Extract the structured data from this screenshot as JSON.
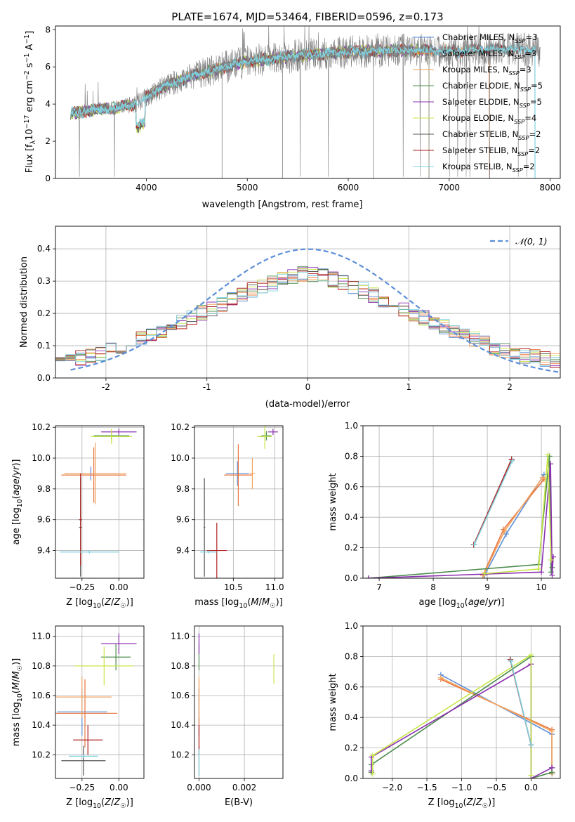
{
  "figure_title": "PLATE=1674, MJD=53464, FIBERID=0596, z=0.173",
  "colors": {
    "chabrier_miles": "#5b8fd8",
    "salpeter_miles": "#e8743b",
    "kroupa_miles": "#f4a460",
    "chabrier_elodie": "#4c8b4c",
    "salpeter_elodie": "#8b2fb0",
    "kroupa_elodie": "#c8e64a",
    "chabrier_stelib": "#555555",
    "salpeter_stelib": "#b22222",
    "kroupa_stelib": "#7fd3e0",
    "grid": "#b0b0b0",
    "gaussian": "#5b8fd8"
  },
  "chart_data": [
    {
      "id": "spectrum",
      "type": "line",
      "title": "PLATE=1674, MJD=53464, FIBERID=0596, z=0.173",
      "xlabel": "wavelength [Angstrom, rest frame]",
      "ylabel": "Flux [f_λ10^-17 erg cm^-2 s^-1 A^-1]",
      "xlim": [
        3100,
        8100
      ],
      "ylim": [
        0,
        8.2
      ],
      "xticks": [
        4000,
        5000,
        6000,
        7000,
        8000
      ],
      "yticks": [
        0,
        2,
        4,
        6,
        8
      ],
      "grid": false,
      "legend": "top-right",
      "legend_entries": [
        {
          "base": "Chabrier MILES, N",
          "sub": "SSP",
          "tail": "=3",
          "color_key": "chabrier_miles"
        },
        {
          "base": "Salpeter MILES, N",
          "sub": "SSP",
          "tail": "=3",
          "color_key": "salpeter_miles"
        },
        {
          "base": "Kroupa MILES, N",
          "sub": "SSP",
          "tail": "=3",
          "color_key": "kroupa_miles"
        },
        {
          "base": "Chabrier ELODIE, N",
          "sub": "SSP",
          "tail": "=5",
          "color_key": "chabrier_elodie"
        },
        {
          "base": "Salpeter ELODIE, N",
          "sub": "SSP",
          "tail": "=5",
          "color_key": "salpeter_elodie"
        },
        {
          "base": "Kroupa ELODIE, N",
          "sub": "SSP",
          "tail": "=4",
          "color_key": "kroupa_elodie"
        },
        {
          "base": "Chabrier STELIB, N",
          "sub": "SSP",
          "tail": "=2",
          "color_key": "chabrier_stelib"
        },
        {
          "base": "Salpeter STELIB, N",
          "sub": "SSP",
          "tail": "=2",
          "color_key": "salpeter_stelib"
        },
        {
          "base": "Kroupa STELIB, N",
          "sub": "SSP",
          "tail": "=2",
          "color_key": "kroupa_stelib"
        }
      ],
      "continuum_anchors": {
        "x": [
          3250,
          3500,
          3700,
          3900,
          4000,
          4200,
          4500,
          5000,
          5500,
          6000,
          6500,
          7000,
          7500,
          7850
        ],
        "y": [
          3.5,
          3.7,
          3.8,
          4.0,
          4.4,
          5.0,
          5.6,
          6.3,
          6.6,
          6.8,
          6.9,
          6.85,
          6.95,
          6.9
        ]
      },
      "model_cutoffs": {
        "start": 3250,
        "end_miles": 7400,
        "end_elodie": 6800,
        "end_stelib": 7850
      }
    },
    {
      "id": "residuals",
      "type": "histogram",
      "xlabel": "(data-model)/error",
      "ylabel": "Normed distribution",
      "xlim": [
        -2.5,
        2.5
      ],
      "ylim": [
        0,
        0.47
      ],
      "xticks": [
        -2,
        -1,
        0,
        1,
        2
      ],
      "yticks": [
        0,
        0.1,
        0.2,
        0.3,
        0.4
      ],
      "grid": true,
      "legend": "top-right",
      "legend_label": "𝒩(0, 1)",
      "bin_width": 0.1
    },
    {
      "id": "age_vs_Z",
      "type": "errorbar",
      "xlabel": "Z [log10(Z/Z☉)]",
      "ylabel": "age [log10(age/yr)]",
      "xlim": [
        -0.43,
        0.17
      ],
      "ylim": [
        9.22,
        10.21
      ],
      "xticks": [
        -0.25,
        0.0
      ],
      "xtick_labels": [
        "−0.25",
        "0.00"
      ],
      "yticks": [
        9.4,
        9.6,
        9.8,
        10.0,
        10.2
      ],
      "grid": true,
      "points": [
        {
          "k": "chabrier_miles",
          "x": -0.19,
          "y": 9.9,
          "xe": 0.17,
          "ye": 0.045
        },
        {
          "k": "salpeter_miles",
          "x": -0.17,
          "y": 9.89,
          "xe": 0.22,
          "ye": 0.18
        },
        {
          "k": "kroupa_miles",
          "x": -0.16,
          "y": 9.9,
          "xe": 0.21,
          "ye": 0.2
        },
        {
          "k": "chabrier_elodie",
          "x": -0.05,
          "y": 10.145,
          "xe": 0.12,
          "ye": 0.03
        },
        {
          "k": "salpeter_elodie",
          "x": 0.0,
          "y": 10.17,
          "xe": 0.12,
          "ye": 0.02
        },
        {
          "k": "kroupa_elodie",
          "x": -0.05,
          "y": 10.14,
          "xe": 0.14,
          "ye": 0.05
        },
        {
          "k": "chabrier_stelib",
          "x": -0.26,
          "y": 9.55,
          "xe": 0.01,
          "ye": 0.32
        },
        {
          "k": "salpeter_stelib",
          "x": -0.26,
          "y": 9.6,
          "xe": 0.01,
          "ye": 0.3
        },
        {
          "k": "kroupa_stelib",
          "x": -0.2,
          "y": 9.39,
          "xe": 0.2,
          "ye": 0.01
        }
      ]
    },
    {
      "id": "age_vs_mass",
      "type": "errorbar",
      "xlabel": "mass [log10(M/M☉)]",
      "ylabel": "",
      "xlim": [
        10.03,
        11.1
      ],
      "ylim": [
        9.22,
        10.21
      ],
      "xticks": [
        10.5,
        11.0
      ],
      "xtick_labels": [
        "10.5",
        "11.0"
      ],
      "yticks": [
        9.4,
        9.6,
        9.8,
        10.0,
        10.2
      ],
      "grid": true,
      "points": [
        {
          "k": "chabrier_miles",
          "x": 10.55,
          "y": 9.9,
          "xe": 0.14,
          "ye": 0.08
        },
        {
          "k": "salpeter_miles",
          "x": 10.56,
          "y": 9.89,
          "xe": 0.17,
          "ye": 0.2
        },
        {
          "k": "kroupa_miles",
          "x": 10.73,
          "y": 9.9,
          "xe": 0.03,
          "ye": 0.1
        },
        {
          "k": "chabrier_elodie",
          "x": 10.9,
          "y": 10.145,
          "xe": 0.06,
          "ye": 0.03
        },
        {
          "k": "salpeter_elodie",
          "x": 10.98,
          "y": 10.17,
          "xe": 0.06,
          "ye": 0.02
        },
        {
          "k": "kroupa_elodie",
          "x": 10.88,
          "y": 10.14,
          "xe": 0.09,
          "ye": 0.08
        },
        {
          "k": "chabrier_stelib",
          "x": 10.15,
          "y": 9.55,
          "xe": 0.01,
          "ye": 0.32
        },
        {
          "k": "salpeter_stelib",
          "x": 10.3,
          "y": 9.4,
          "xe": 0.12,
          "ye": 0.18
        },
        {
          "k": "kroupa_stelib",
          "x": 10.2,
          "y": 9.39,
          "xe": 0.1,
          "ye": 0.01
        }
      ]
    },
    {
      "id": "mass_vs_Z",
      "type": "errorbar",
      "xlabel": "Z [log10(Z/Z☉)]",
      "ylabel": "mass [log10(M/M☉)]",
      "xlim": [
        -0.43,
        0.17
      ],
      "ylim": [
        10.04,
        11.07
      ],
      "xticks": [
        -0.25,
        0.0
      ],
      "xtick_labels": [
        "−0.25",
        "0.00"
      ],
      "yticks": [
        10.2,
        10.4,
        10.6,
        10.8,
        11.0
      ],
      "grid": true,
      "points": [
        {
          "k": "chabrier_miles",
          "x": -0.25,
          "y": 10.49,
          "xe": 0.17,
          "ye": 0.16
        },
        {
          "k": "salpeter_miles",
          "x": -0.23,
          "y": 10.48,
          "xe": 0.22,
          "ye": 0.23
        },
        {
          "k": "kroupa_miles",
          "x": -0.25,
          "y": 10.59,
          "xe": 0.2,
          "ye": 0.14
        },
        {
          "k": "chabrier_elodie",
          "x": -0.02,
          "y": 10.86,
          "xe": 0.1,
          "ye": 0.09
        },
        {
          "k": "salpeter_elodie",
          "x": 0.0,
          "y": 10.95,
          "xe": 0.12,
          "ye": 0.07
        },
        {
          "k": "kroupa_elodie",
          "x": -0.1,
          "y": 10.8,
          "xe": 0.2,
          "ye": 0.13
        },
        {
          "k": "chabrier_stelib",
          "x": -0.24,
          "y": 10.16,
          "xe": 0.15,
          "ye": 0.1
        },
        {
          "k": "salpeter_stelib",
          "x": -0.21,
          "y": 10.3,
          "xe": 0.1,
          "ye": 0.1
        },
        {
          "k": "kroupa_stelib",
          "x": -0.24,
          "y": 10.19,
          "xe": 0.1,
          "ye": 0.01
        }
      ]
    },
    {
      "id": "mass_vs_ebv",
      "type": "errorbar",
      "xlabel": "E(B-V)",
      "ylabel": "",
      "xlim": [
        -0.0002,
        0.0037
      ],
      "ylim": [
        10.04,
        11.07
      ],
      "xticks": [
        0.0,
        0.002
      ],
      "xtick_labels": [
        "0.000",
        "0.002"
      ],
      "yticks": [
        10.2,
        10.4,
        10.6,
        10.8,
        11.0
      ],
      "grid": true,
      "points": [
        {
          "k": "chabrier_miles",
          "x": 0.0,
          "y": 10.49,
          "xe": 0.0,
          "ye": 0.16
        },
        {
          "k": "salpeter_miles",
          "x": 0.0,
          "y": 10.48,
          "xe": 0.0,
          "ye": 0.23
        },
        {
          "k": "kroupa_miles",
          "x": 0.0,
          "y": 10.59,
          "xe": 0.0,
          "ye": 0.14
        },
        {
          "k": "chabrier_elodie",
          "x": 0.0,
          "y": 10.86,
          "xe": 0.0,
          "ye": 0.09
        },
        {
          "k": "salpeter_elodie",
          "x": 0.0,
          "y": 10.95,
          "xe": 0.0,
          "ye": 0.07
        },
        {
          "k": "kroupa_elodie",
          "x": 0.0033,
          "y": 10.78,
          "xe": 0.0,
          "ye": 0.1
        },
        {
          "k": "chabrier_stelib",
          "x": 0.0,
          "y": 10.16,
          "xe": 0.0,
          "ye": 0.1
        },
        {
          "k": "salpeter_stelib",
          "x": 0.0,
          "y": 10.3,
          "xe": 0.0,
          "ye": 0.1
        },
        {
          "k": "kroupa_stelib",
          "x": 0.0,
          "y": 10.15,
          "xe": 0.0,
          "ye": 0.09
        }
      ]
    },
    {
      "id": "weight_vs_age",
      "type": "line",
      "xlabel": "age [log10(age/yr)]",
      "ylabel": "mass weight",
      "xlim": [
        6.7,
        10.35
      ],
      "ylim": [
        0,
        1.0
      ],
      "xticks": [
        7,
        8,
        9,
        10
      ],
      "xtick_labels": [
        "7",
        "8",
        "9",
        "10"
      ],
      "yticks": [
        0,
        0.2,
        0.4,
        0.6,
        0.8,
        1.0
      ],
      "grid": true,
      "series": [
        {
          "k": "chabrier_miles",
          "x": [
            8.95,
            9.35,
            10.05
          ],
          "y": [
            0.02,
            0.29,
            0.68
          ]
        },
        {
          "k": "salpeter_miles",
          "x": [
            8.92,
            9.3,
            10.05
          ],
          "y": [
            0.02,
            0.32,
            0.65
          ]
        },
        {
          "k": "kroupa_miles",
          "x": [
            8.93,
            9.32,
            10.02
          ],
          "y": [
            0.02,
            0.31,
            0.66
          ]
        },
        {
          "k": "chabrier_elodie",
          "x": [
            6.8,
            9.95,
            10.15,
            10.18,
            10.2
          ],
          "y": [
            0.0,
            0.09,
            0.8,
            0.04,
            0.07
          ]
        },
        {
          "k": "salpeter_elodie",
          "x": [
            6.8,
            10.0,
            10.17,
            10.2,
            10.22
          ],
          "y": [
            0.0,
            0.04,
            0.75,
            0.02,
            0.14
          ]
        },
        {
          "k": "kroupa_elodie",
          "x": [
            8.95,
            9.95,
            10.12,
            10.18
          ],
          "y": [
            0.03,
            0.06,
            0.81,
            0.12
          ]
        },
        {
          "k": "chabrier_stelib",
          "x": [
            8.75,
            9.45
          ],
          "y": [
            0.22,
            0.78
          ]
        },
        {
          "k": "salpeter_stelib",
          "x": [
            8.75,
            9.45
          ],
          "y": [
            0.22,
            0.78
          ]
        },
        {
          "k": "kroupa_stelib",
          "x": [
            8.76,
            9.46
          ],
          "y": [
            0.22,
            0.77
          ]
        }
      ]
    },
    {
      "id": "weight_vs_Z",
      "type": "line",
      "xlabel": "Z [log10(Z/Z☉)]",
      "ylabel": "mass weight",
      "xlim": [
        -2.42,
        0.42
      ],
      "ylim": [
        0,
        1.0
      ],
      "xticks": [
        -2.0,
        -1.5,
        -1.0,
        -0.5,
        0.0
      ],
      "xtick_labels": [
        "−2.0",
        "−1.5",
        "−1.0",
        "−0.5",
        "0.0"
      ],
      "yticks": [
        0,
        0.2,
        0.4,
        0.6,
        0.8,
        1.0
      ],
      "grid": true,
      "series": [
        {
          "k": "chabrier_miles",
          "x": [
            -1.3,
            0.3,
            0.3
          ],
          "y": [
            0.68,
            0.29,
            0.03
          ]
        },
        {
          "k": "salpeter_miles",
          "x": [
            -1.3,
            0.3,
            0.3
          ],
          "y": [
            0.65,
            0.32,
            0.03
          ]
        },
        {
          "k": "kroupa_miles",
          "x": [
            -1.3,
            0.3,
            0.3
          ],
          "y": [
            0.66,
            0.31,
            0.03
          ]
        },
        {
          "k": "chabrier_elodie",
          "x": [
            -2.3,
            -2.3,
            0.0,
            0.0,
            0.3,
            0.3
          ],
          "y": [
            0.04,
            0.09,
            0.8,
            0.0,
            0.04,
            0.07
          ]
        },
        {
          "k": "salpeter_elodie",
          "x": [
            -2.3,
            -2.3,
            0.0,
            0.0,
            0.3
          ],
          "y": [
            0.05,
            0.14,
            0.75,
            0.0,
            0.07
          ]
        },
        {
          "k": "kroupa_elodie",
          "x": [
            -2.28,
            -2.28,
            0.0,
            0.0
          ],
          "y": [
            0.03,
            0.15,
            0.81,
            0.02
          ]
        },
        {
          "k": "chabrier_stelib",
          "x": [
            -0.3,
            0.0
          ],
          "y": [
            0.78,
            0.22
          ]
        },
        {
          "k": "salpeter_stelib",
          "x": [
            -0.3,
            0.0
          ],
          "y": [
            0.78,
            0.22
          ]
        },
        {
          "k": "kroupa_stelib",
          "x": [
            -0.29,
            0.0
          ],
          "y": [
            0.77,
            0.22
          ]
        }
      ]
    }
  ]
}
